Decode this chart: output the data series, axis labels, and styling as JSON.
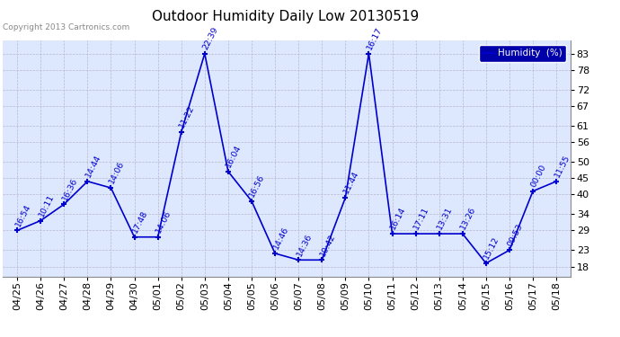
{
  "title": "Outdoor Humidity Daily Low 20130519",
  "copyright": "Copyright 2013 Cartronics.com",
  "legend_label": "Humidity  (%)",
  "yticks": [
    18,
    23,
    29,
    34,
    40,
    45,
    50,
    56,
    61,
    67,
    72,
    78,
    83
  ],
  "xlabels": [
    "04/25",
    "04/26",
    "04/27",
    "04/28",
    "04/29",
    "04/30",
    "05/01",
    "05/02",
    "05/03",
    "05/04",
    "05/05",
    "05/06",
    "05/07",
    "05/08",
    "05/09",
    "05/10",
    "05/11",
    "05/12",
    "05/13",
    "05/14",
    "05/15",
    "05/16",
    "05/17",
    "05/18"
  ],
  "x_indices": [
    0,
    1,
    2,
    3,
    4,
    5,
    6,
    7,
    8,
    9,
    10,
    11,
    12,
    13,
    14,
    15,
    16,
    17,
    18,
    19,
    20,
    21,
    22,
    23
  ],
  "y_values": [
    29,
    32,
    37,
    44,
    42,
    27,
    27,
    59,
    83,
    47,
    38,
    22,
    20,
    20,
    39,
    83,
    28,
    28,
    28,
    28,
    19,
    23,
    41,
    44
  ],
  "point_labels": [
    "16:54",
    "10:11",
    "16:36",
    "14:44",
    "14:06",
    "17:48",
    "14:06",
    "11:22",
    "22:39",
    "16:04",
    "16:56",
    "14:46",
    "14:36",
    "10:42",
    "11:44",
    "16:17",
    "16:14",
    "17:11",
    "13:31",
    "13:26",
    "15:12",
    "09:53",
    "00:00",
    "11:55"
  ],
  "line_color": "#0000cc",
  "background_color": "#ffffff",
  "plot_bg_color": "#dde8ff",
  "grid_color": "#b8b8cc",
  "title_color": "#000000",
  "label_color": "#0000cc",
  "copyright_color": "#888888",
  "legend_bg": "#0000aa",
  "ylim": [
    15,
    87
  ],
  "xlim_left": -0.6,
  "xlim_right": 23.6,
  "title_fontsize": 11,
  "tick_fontsize": 8,
  "label_fontsize": 6.8,
  "label_rotation": 63,
  "copyright_fontsize": 6.5
}
